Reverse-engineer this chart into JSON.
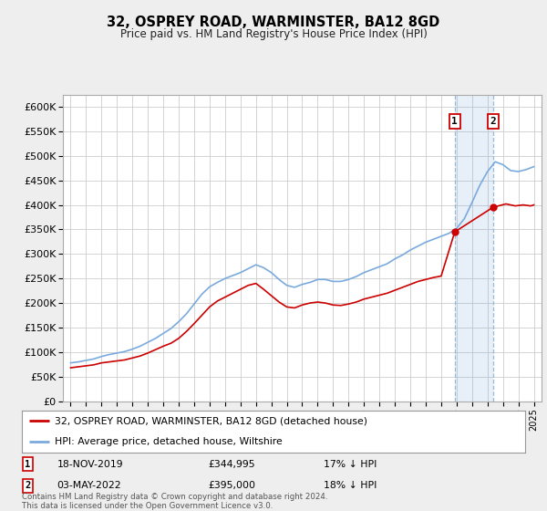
{
  "title": "32, OSPREY ROAD, WARMINSTER, BA12 8GD",
  "subtitle": "Price paid vs. HM Land Registry's House Price Index (HPI)",
  "ylabel_ticks": [
    "£0",
    "£50K",
    "£100K",
    "£150K",
    "£200K",
    "£250K",
    "£300K",
    "£350K",
    "£400K",
    "£450K",
    "£500K",
    "£550K",
    "£600K"
  ],
  "ytick_values": [
    0,
    50000,
    100000,
    150000,
    200000,
    250000,
    300000,
    350000,
    400000,
    450000,
    500000,
    550000,
    600000
  ],
  "ylim": [
    0,
    625000
  ],
  "background_color": "#eeeeee",
  "plot_bg_color": "#ffffff",
  "grid_color": "#cccccc",
  "hpi_color": "#7aaadd",
  "property_color": "#cc0000",
  "sale1_price": 344995,
  "sale1_date": "18-NOV-2019",
  "sale1_note": "17% ↓ HPI",
  "sale2_price": 395000,
  "sale2_date": "03-MAY-2022",
  "sale2_note": "18% ↓ HPI",
  "legend_property": "32, OSPREY ROAD, WARMINSTER, BA12 8GD (detached house)",
  "legend_hpi": "HPI: Average price, detached house, Wiltshire",
  "footnote": "Contains HM Land Registry data © Crown copyright and database right 2024.\nThis data is licensed under the Open Government Licence v3.0.",
  "hpi_x": [
    1995.0,
    1995.5,
    1996.0,
    1996.5,
    1997.0,
    1997.5,
    1998.0,
    1998.5,
    1999.0,
    1999.5,
    2000.0,
    2000.5,
    2001.0,
    2001.5,
    2002.0,
    2002.5,
    2003.0,
    2003.5,
    2004.0,
    2004.5,
    2005.0,
    2005.5,
    2006.0,
    2006.5,
    2007.0,
    2007.5,
    2008.0,
    2008.5,
    2009.0,
    2009.5,
    2010.0,
    2010.5,
    2011.0,
    2011.5,
    2012.0,
    2012.5,
    2013.0,
    2013.5,
    2014.0,
    2014.5,
    2015.0,
    2015.5,
    2016.0,
    2016.5,
    2017.0,
    2017.5,
    2018.0,
    2018.5,
    2019.0,
    2019.5,
    2020.0,
    2020.5,
    2021.0,
    2021.5,
    2022.0,
    2022.5,
    2023.0,
    2023.5,
    2024.0,
    2024.5,
    2025.0
  ],
  "hpi_y": [
    78000,
    80000,
    83000,
    86000,
    91000,
    95000,
    98000,
    101000,
    106000,
    112000,
    120000,
    128000,
    138000,
    148000,
    162000,
    178000,
    198000,
    218000,
    233000,
    242000,
    250000,
    256000,
    262000,
    270000,
    278000,
    272000,
    262000,
    248000,
    236000,
    232000,
    238000,
    242000,
    248000,
    248000,
    244000,
    244000,
    248000,
    254000,
    262000,
    268000,
    274000,
    280000,
    290000,
    298000,
    308000,
    316000,
    324000,
    330000,
    336000,
    342000,
    352000,
    372000,
    405000,
    440000,
    468000,
    488000,
    482000,
    470000,
    468000,
    472000,
    478000
  ],
  "prop_x": [
    1995.0,
    1995.5,
    1996.0,
    1996.5,
    1997.0,
    1997.5,
    1998.0,
    1998.5,
    1999.0,
    1999.5,
    2000.0,
    2000.5,
    2001.0,
    2001.5,
    2002.0,
    2002.5,
    2003.0,
    2003.5,
    2004.0,
    2004.5,
    2005.0,
    2005.5,
    2006.0,
    2006.5,
    2007.0,
    2007.5,
    2008.0,
    2008.5,
    2009.0,
    2009.5,
    2010.0,
    2010.5,
    2011.0,
    2011.5,
    2012.0,
    2012.5,
    2013.0,
    2013.5,
    2014.0,
    2014.5,
    2015.0,
    2015.5,
    2016.0,
    2016.5,
    2017.0,
    2017.5,
    2018.0,
    2018.5,
    2019.0,
    2019.88,
    2022.35,
    2022.7,
    2023.2,
    2023.8,
    2024.3,
    2024.8,
    2025.0
  ],
  "prop_y": [
    68000,
    70000,
    72000,
    74000,
    78000,
    80000,
    82000,
    84000,
    88000,
    92000,
    98000,
    105000,
    112000,
    118000,
    128000,
    142000,
    158000,
    175000,
    192000,
    204000,
    212000,
    220000,
    228000,
    236000,
    240000,
    228000,
    215000,
    202000,
    192000,
    190000,
    196000,
    200000,
    202000,
    200000,
    196000,
    195000,
    198000,
    202000,
    208000,
    212000,
    216000,
    220000,
    226000,
    232000,
    238000,
    244000,
    248000,
    252000,
    255000,
    344995,
    395000,
    398000,
    402000,
    398000,
    400000,
    398000,
    400000
  ],
  "shade_x1": 2019.88,
  "shade_x2": 2022.35,
  "sale1_x": 2019.88,
  "sale2_x": 2022.35,
  "xlim": [
    1994.5,
    2025.5
  ],
  "xticks": [
    1995,
    1996,
    1997,
    1998,
    1999,
    2000,
    2001,
    2002,
    2003,
    2004,
    2005,
    2006,
    2007,
    2008,
    2009,
    2010,
    2011,
    2012,
    2013,
    2014,
    2015,
    2016,
    2017,
    2018,
    2019,
    2020,
    2021,
    2022,
    2023,
    2024,
    2025
  ]
}
